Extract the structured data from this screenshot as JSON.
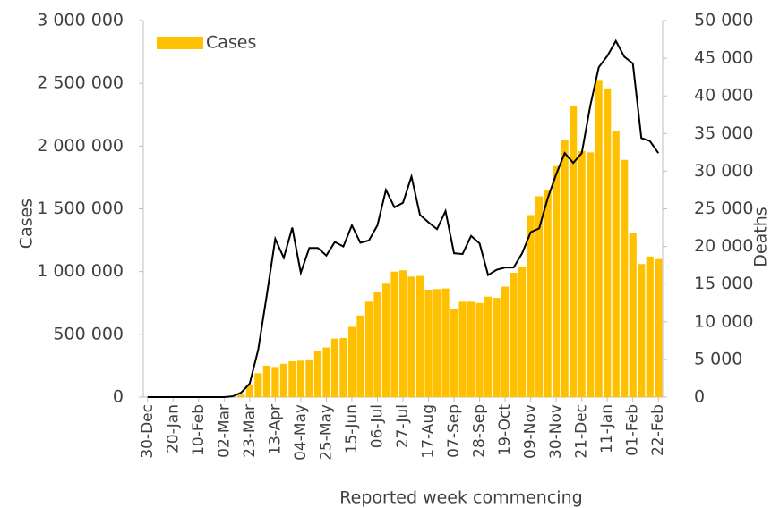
{
  "chart_data": {
    "type": "bar",
    "y_label": "Cases",
    "y2_label": "Deaths",
    "x_label": "Reported week commencing",
    "categories": [
      "30-Dec",
      null,
      null,
      "20-Jan",
      null,
      null,
      "10-Feb",
      null,
      null,
      "02-Mar",
      null,
      null,
      "23-Mar",
      null,
      null,
      "13-Apr",
      null,
      null,
      "04-May",
      null,
      null,
      "25-May",
      null,
      null,
      "15-Jun",
      null,
      null,
      "06-Jul",
      null,
      null,
      "27-Jul",
      null,
      null,
      "17-Aug",
      null,
      null,
      "07-Sep",
      null,
      null,
      "28-Sep",
      null,
      null,
      "19-Oct",
      null,
      null,
      "09-Nov",
      null,
      null,
      "30-Nov",
      null,
      null,
      "21-Dec",
      null,
      null,
      "11-Jan",
      null,
      null,
      "01-Feb",
      null,
      null,
      "22-Feb"
    ],
    "series": [
      {
        "name": "Cases",
        "type": "bar",
        "color": "#ffc000",
        "values": [
          0,
          0,
          0,
          0,
          0,
          0,
          0,
          0,
          0,
          0,
          0,
          20000,
          100000,
          190000,
          250000,
          240000,
          265000,
          285000,
          290000,
          300000,
          370000,
          395000,
          465000,
          470000,
          560000,
          650000,
          760000,
          840000,
          910000,
          1000000,
          1010000,
          960000,
          965000,
          855000,
          860000,
          865000,
          700000,
          760000,
          760000,
          750000,
          800000,
          790000,
          880000,
          990000,
          1040000,
          1450000,
          1600000,
          1650000,
          1840000,
          2050000,
          2320000,
          1960000,
          1950000,
          2520000,
          2460000,
          2120000,
          1890000,
          1310000,
          1060000,
          1120000,
          1100000
        ]
      },
      {
        "type": "line",
        "axis": "y2",
        "color": "#000000",
        "values": [
          0,
          0,
          0,
          0,
          0,
          0,
          0,
          0,
          0,
          0,
          100,
          600,
          1800,
          6300,
          13500,
          21000,
          18500,
          22500,
          16500,
          19800,
          19800,
          18800,
          20600,
          20000,
          22800,
          20500,
          20800,
          22800,
          27500,
          25200,
          25800,
          29300,
          24200,
          23200,
          22300,
          24700,
          19100,
          19000,
          21400,
          20400,
          16200,
          16900,
          17200,
          17200,
          19100,
          21900,
          22400,
          26400,
          29600,
          32400,
          31100,
          32400,
          38700,
          43800,
          45300,
          47300,
          45200,
          44300,
          34400,
          34000,
          32400
        ]
      }
    ],
    "ylim": [
      0,
      3000000
    ],
    "yticks": [
      0,
      {
        "value": 500000,
        "label": "500 000"
      },
      {
        "value": 1000000,
        "label": "1 000 000"
      },
      {
        "value": 1500000,
        "label": "1 500 000"
      },
      {
        "value": 2000000,
        "label": "2 000 000"
      },
      {
        "value": 2500000,
        "label": "2 500 000"
      },
      {
        "value": 3000000,
        "label": "3 000 000"
      }
    ],
    "y2lim": [
      0,
      50000
    ],
    "y2ticks": [
      0,
      {
        "value": 5000,
        "label": "5 000"
      },
      {
        "value": 10000,
        "label": "10 000"
      },
      {
        "value": 15000,
        "label": "15 000"
      },
      {
        "value": 20000,
        "label": "20 000"
      },
      {
        "value": 25000,
        "label": "25 000"
      },
      {
        "value": 30000,
        "label": "30 000"
      },
      {
        "value": 35000,
        "label": "35 000"
      },
      {
        "value": 40000,
        "label": "40 000"
      },
      {
        "value": 45000,
        "label": "45 000"
      },
      {
        "value": 50000,
        "label": "50 000"
      }
    ],
    "legend": "top-left"
  }
}
